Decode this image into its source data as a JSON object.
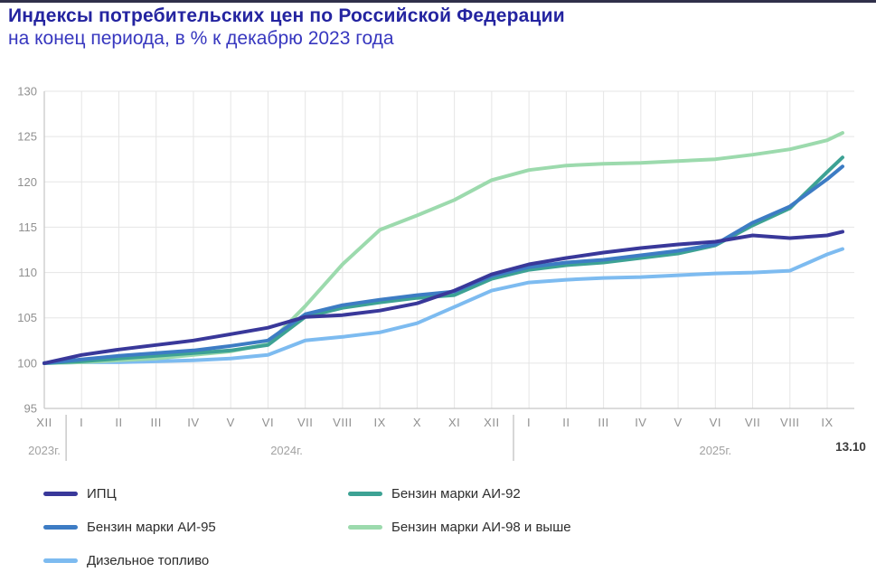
{
  "header": {
    "title": "Индексы потребительских цен по Российской Федерации",
    "subtitle": "на конец периода, в % к декабрю 2023 года",
    "title_color": "#2424a0",
    "subtitle_color": "#3737bf"
  },
  "chart_data": {
    "type": "line",
    "title": "Индексы потребительских цен по Российской Федерации",
    "subtitle": "на конец периода, в % к декабрю 2023 года",
    "x_labels": [
      "XII",
      "I",
      "II",
      "III",
      "IV",
      "V",
      "VI",
      "VII",
      "VIII",
      "IX",
      "X",
      "XI",
      "XII",
      "I",
      "II",
      "III",
      "IV",
      "V",
      "VI",
      "VII",
      "VIII",
      "IX"
    ],
    "year_groups": [
      {
        "label": "2023г.",
        "anchor_index": 0
      },
      {
        "label": "2024г.",
        "anchor_index": 6.5
      },
      {
        "label": "2025г.",
        "anchor_index": 18
      }
    ],
    "end_date_annotation": "13.10",
    "y_ticks": [
      95,
      100,
      105,
      110,
      115,
      120,
      125,
      130
    ],
    "ylim": [
      95,
      130
    ],
    "grid": true,
    "note": "Last value of each series is the extra data point dated 13.10 (after IX 2025)",
    "series": [
      {
        "name": "Дизельное топливо",
        "color": "#7dbbf0",
        "values": [
          100,
          100.1,
          100.1,
          100.2,
          100.3,
          100.5,
          100.9,
          102.5,
          102.9,
          103.4,
          104.4,
          106.2,
          108.0,
          108.9,
          109.2,
          109.4,
          109.5,
          109.7,
          109.9,
          110.0,
          110.2,
          112.0,
          112.6
        ]
      },
      {
        "name": "Бензин марки АИ-98 и выше",
        "color": "#9cdaad",
        "values": [
          100,
          100.1,
          100.3,
          100.5,
          100.9,
          101.3,
          102.1,
          106.3,
          110.9,
          114.7,
          116.3,
          118.0,
          120.2,
          121.3,
          121.8,
          122.0,
          122.1,
          122.3,
          122.5,
          123.0,
          123.6,
          124.6,
          125.4
        ]
      },
      {
        "name": "Бензин марки АИ-92",
        "color": "#3da294",
        "values": [
          100,
          100.2,
          100.5,
          100.8,
          101.1,
          101.4,
          102.0,
          105.1,
          106.1,
          106.7,
          107.2,
          107.5,
          109.3,
          110.3,
          110.8,
          111.1,
          111.6,
          112.1,
          113.0,
          115.2,
          117.1,
          121.1,
          122.7
        ]
      },
      {
        "name": "Бензин марки АИ-95",
        "color": "#3d7cc4",
        "values": [
          100,
          100.4,
          100.8,
          101.1,
          101.4,
          101.9,
          102.5,
          105.4,
          106.4,
          107.0,
          107.5,
          107.9,
          109.6,
          110.6,
          111.1,
          111.4,
          111.9,
          112.4,
          113.1,
          115.5,
          117.3,
          120.3,
          121.7
        ]
      },
      {
        "name": "ИПЦ",
        "color": "#39389a",
        "values": [
          100,
          100.9,
          101.5,
          102.0,
          102.5,
          103.2,
          103.9,
          105.1,
          105.3,
          105.8,
          106.6,
          108.0,
          109.8,
          110.9,
          111.6,
          112.2,
          112.7,
          113.1,
          113.4,
          114.1,
          113.8,
          114.1,
          114.5
        ]
      }
    ],
    "legend": {
      "columns": [
        [
          "ИПЦ",
          "Бензин марки АИ-95",
          "Дизельное топливо"
        ],
        [
          "Бензин марки АИ-92",
          "Бензин марки АИ-98 и выше"
        ]
      ]
    },
    "layout": {
      "axis_color": "#c6c6c6",
      "grid_color": "#e5e5e5",
      "tick_text_color": "#909090",
      "year_text_color": "#a2a2a2",
      "annotation_color": "#3c3c3c"
    }
  }
}
